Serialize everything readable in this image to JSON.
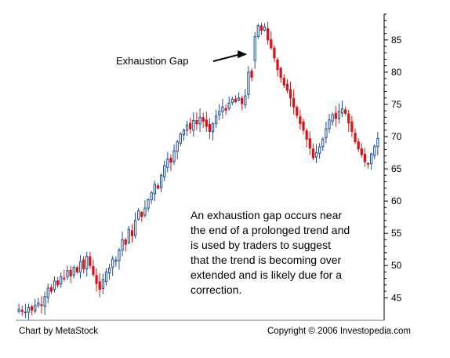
{
  "chart_data": {
    "type": "candlestick",
    "title": "",
    "xlabel": "",
    "ylabel": "",
    "ylim": [
      41.5,
      89
    ],
    "yticks": [
      45,
      50,
      55,
      60,
      65,
      70,
      75,
      80,
      85
    ],
    "grid": false,
    "annotation": {
      "label": "Exhaustion Gap",
      "target": {
        "index": 73,
        "price": 83.5
      }
    },
    "note": [
      "An exhaustion gap occurs near",
      "the end of a prolonged trend and",
      "is used by traders to suggest",
      "that the trend is becoming over",
      "extended and is likely due for a",
      "correction."
    ],
    "up_color": "#1f4e8c",
    "down_color": "#d4161c",
    "prices": [
      43.2,
      43.0,
      42.8,
      43.5,
      43.1,
      43.8,
      44.2,
      43.9,
      45.2,
      46.5,
      46.0,
      47.6,
      47.0,
      48.3,
      48.0,
      49.2,
      48.4,
      49.7,
      49.0,
      50.6,
      49.5,
      51.4,
      50.0,
      48.6,
      47.2,
      46.3,
      47.8,
      49.0,
      49.6,
      51.0,
      50.8,
      52.4,
      54.0,
      53.3,
      55.6,
      54.6,
      57.0,
      58.5,
      57.6,
      58.9,
      60.2,
      61.3,
      62.6,
      62.0,
      64.0,
      65.5,
      66.5,
      66.0,
      67.8,
      69.2,
      70.4,
      71.0,
      71.8,
      71.2,
      72.5,
      72.0,
      73.0,
      72.4,
      71.6,
      70.8,
      72.0,
      73.2,
      73.9,
      74.6,
      74.1,
      75.2,
      75.8,
      75.4,
      76.0,
      75.1,
      76.3,
      80.0,
      79.2,
      85.5,
      87.2,
      86.5,
      87.0,
      85.0,
      83.8,
      82.2,
      80.4,
      79.2,
      78.0,
      77.2,
      76.0,
      74.6,
      73.3,
      72.0,
      71.0,
      69.6,
      68.2,
      66.7,
      67.5,
      68.4,
      69.6,
      71.2,
      72.6,
      73.4,
      72.8,
      73.9,
      74.3,
      73.6,
      72.1,
      70.8,
      69.2,
      68.1,
      67.2,
      66.1,
      65.8,
      67.3,
      68.5,
      69.7
    ]
  },
  "footer": {
    "left": "Chart by MetaStock",
    "right": "Copyright © 2006 Investopedia.com"
  }
}
